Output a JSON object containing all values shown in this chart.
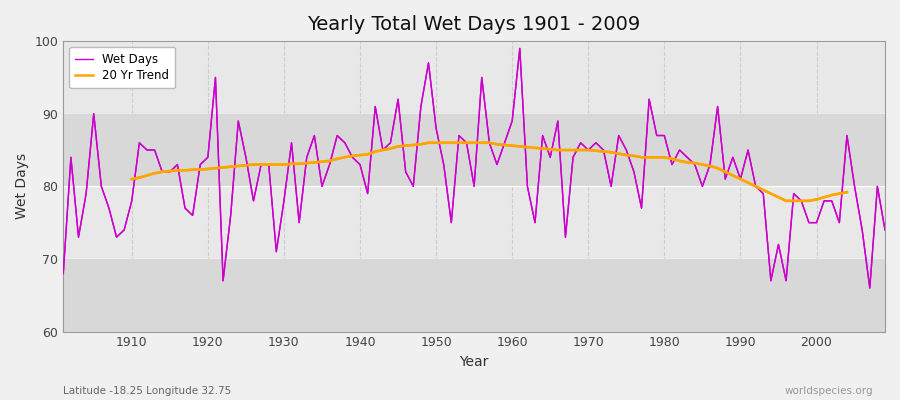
{
  "title": "Yearly Total Wet Days 1901 - 2009",
  "xlabel": "Year",
  "ylabel": "Wet Days",
  "xlim": [
    1901,
    2009
  ],
  "ylim": [
    60,
    100
  ],
  "yticks": [
    60,
    70,
    80,
    90,
    100
  ],
  "xticks": [
    1910,
    1920,
    1930,
    1940,
    1950,
    1960,
    1970,
    1980,
    1990,
    2000
  ],
  "fig_bg_color": "#f0f0f0",
  "plot_bg_color": "#e8e8e8",
  "line_color": "#cc00cc",
  "trend_color": "#ffa500",
  "subtitle_left": "Latitude -18.25 Longitude 32.75",
  "subtitle_right": "worldspecies.org",
  "wet_days": {
    "1901": 68,
    "1902": 84,
    "1903": 73,
    "1904": 79,
    "1905": 90,
    "1906": 80,
    "1907": 77,
    "1908": 73,
    "1909": 74,
    "1910": 78,
    "1911": 86,
    "1912": 85,
    "1913": 85,
    "1914": 82,
    "1915": 82,
    "1916": 83,
    "1917": 77,
    "1918": 76,
    "1919": 83,
    "1920": 84,
    "1921": 95,
    "1922": 67,
    "1923": 76,
    "1924": 89,
    "1925": 84,
    "1926": 78,
    "1927": 83,
    "1928": 83,
    "1929": 71,
    "1930": 78,
    "1931": 86,
    "1932": 75,
    "1933": 84,
    "1934": 87,
    "1935": 80,
    "1936": 83,
    "1937": 87,
    "1938": 86,
    "1939": 84,
    "1940": 83,
    "1941": 79,
    "1942": 91,
    "1943": 85,
    "1944": 86,
    "1945": 92,
    "1946": 82,
    "1947": 80,
    "1948": 91,
    "1949": 97,
    "1950": 88,
    "1951": 83,
    "1952": 75,
    "1953": 87,
    "1954": 86,
    "1955": 80,
    "1956": 95,
    "1957": 86,
    "1958": 83,
    "1959": 86,
    "1960": 89,
    "1961": 99,
    "1962": 80,
    "1963": 75,
    "1964": 87,
    "1965": 84,
    "1966": 89,
    "1967": 73,
    "1968": 84,
    "1969": 86,
    "1970": 85,
    "1971": 86,
    "1972": 85,
    "1973": 80,
    "1974": 87,
    "1975": 85,
    "1976": 82,
    "1977": 77,
    "1978": 92,
    "1979": 87,
    "1980": 87,
    "1981": 83,
    "1982": 85,
    "1983": 84,
    "1984": 83,
    "1985": 80,
    "1986": 83,
    "1987": 91,
    "1988": 81,
    "1989": 84,
    "1990": 81,
    "1991": 85,
    "1992": 80,
    "1993": 79,
    "1994": 67,
    "1995": 72,
    "1996": 67,
    "1997": 79,
    "1998": 78,
    "1999": 75,
    "2000": 75,
    "2001": 78,
    "2002": 78,
    "2003": 75,
    "2004": 87,
    "2005": 80,
    "2006": 74,
    "2007": 66,
    "2008": 80,
    "2009": 74
  },
  "trend": {
    "1910": 81.0,
    "1911": 81.2,
    "1912": 81.5,
    "1913": 81.8,
    "1914": 82.0,
    "1915": 82.1,
    "1916": 82.2,
    "1917": 82.2,
    "1918": 82.3,
    "1919": 82.3,
    "1920": 82.4,
    "1921": 82.5,
    "1922": 82.6,
    "1923": 82.7,
    "1924": 82.8,
    "1925": 82.9,
    "1926": 83.0,
    "1927": 83.0,
    "1928": 83.0,
    "1929": 83.0,
    "1930": 83.0,
    "1931": 83.1,
    "1932": 83.1,
    "1933": 83.2,
    "1934": 83.3,
    "1935": 83.4,
    "1936": 83.5,
    "1937": 83.8,
    "1938": 84.0,
    "1939": 84.2,
    "1940": 84.3,
    "1941": 84.4,
    "1942": 84.8,
    "1943": 85.0,
    "1944": 85.2,
    "1945": 85.5,
    "1946": 85.6,
    "1947": 85.7,
    "1948": 85.8,
    "1949": 86.0,
    "1950": 86.0,
    "1951": 86.0,
    "1952": 86.0,
    "1953": 86.0,
    "1954": 86.0,
    "1955": 86.0,
    "1956": 86.0,
    "1957": 86.0,
    "1958": 85.8,
    "1959": 85.7,
    "1960": 85.6,
    "1961": 85.5,
    "1962": 85.4,
    "1963": 85.3,
    "1964": 85.2,
    "1965": 85.1,
    "1966": 85.0,
    "1967": 85.0,
    "1968": 85.0,
    "1969": 85.0,
    "1970": 85.0,
    "1971": 84.9,
    "1972": 84.8,
    "1973": 84.7,
    "1974": 84.5,
    "1975": 84.3,
    "1976": 84.2,
    "1977": 84.0,
    "1978": 84.0,
    "1979": 84.0,
    "1980": 84.0,
    "1981": 83.8,
    "1982": 83.5,
    "1983": 83.3,
    "1984": 83.2,
    "1985": 83.0,
    "1986": 82.8,
    "1987": 82.5,
    "1988": 82.0,
    "1989": 81.5,
    "1990": 81.0,
    "1991": 80.5,
    "1992": 80.0,
    "1993": 79.5,
    "1994": 79.0,
    "1995": 78.5,
    "1996": 78.0,
    "1997": 78.0,
    "1998": 78.0,
    "1999": 78.0,
    "2000": 78.2,
    "2001": 78.5,
    "2002": 78.8,
    "2003": 79.0,
    "2004": 79.2
  }
}
